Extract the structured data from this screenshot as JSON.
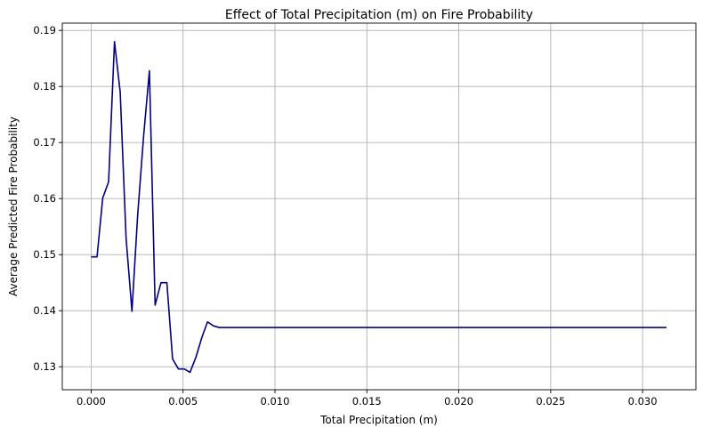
{
  "chart_data": {
    "type": "line",
    "title": "Effect of Total Precipitation (m) on Fire Probability",
    "xlabel": "Total Precipitation (m)",
    "ylabel": "Average Predicted Fire Probability",
    "xlim": [
      -0.00157,
      0.0329
    ],
    "ylim": [
      0.1259,
      0.1913
    ],
    "xticks": [
      0.0,
      0.005,
      0.01,
      0.015,
      0.02,
      0.025,
      0.03
    ],
    "xtick_labels": [
      "0.000",
      "0.005",
      "0.010",
      "0.015",
      "0.020",
      "0.025",
      "0.030"
    ],
    "yticks": [
      0.13,
      0.14,
      0.15,
      0.16,
      0.17,
      0.18,
      0.19
    ],
    "ytick_labels": [
      "0.13",
      "0.14",
      "0.15",
      "0.16",
      "0.17",
      "0.18",
      "0.19"
    ],
    "grid": true,
    "series_color": "#000080",
    "x": [
      0.0,
      0.00032,
      0.00063,
      0.00095,
      0.00127,
      0.00158,
      0.0019,
      0.00222,
      0.00253,
      0.00285,
      0.00317,
      0.00348,
      0.0038,
      0.00412,
      0.00443,
      0.00475,
      0.00507,
      0.00538,
      0.0057,
      0.00602,
      0.00633,
      0.00665,
      0.00697,
      0.0075,
      0.01,
      0.015,
      0.02,
      0.025,
      0.03,
      0.0313
    ],
    "y": [
      0.1496,
      0.1496,
      0.1601,
      0.163,
      0.188,
      0.179,
      0.153,
      0.1399,
      0.157,
      0.171,
      0.1828,
      0.141,
      0.145,
      0.145,
      0.1314,
      0.1296,
      0.1296,
      0.129,
      0.1317,
      0.1352,
      0.138,
      0.1373,
      0.137,
      0.137,
      0.137,
      0.137,
      0.137,
      0.137,
      0.137,
      0.137
    ]
  }
}
